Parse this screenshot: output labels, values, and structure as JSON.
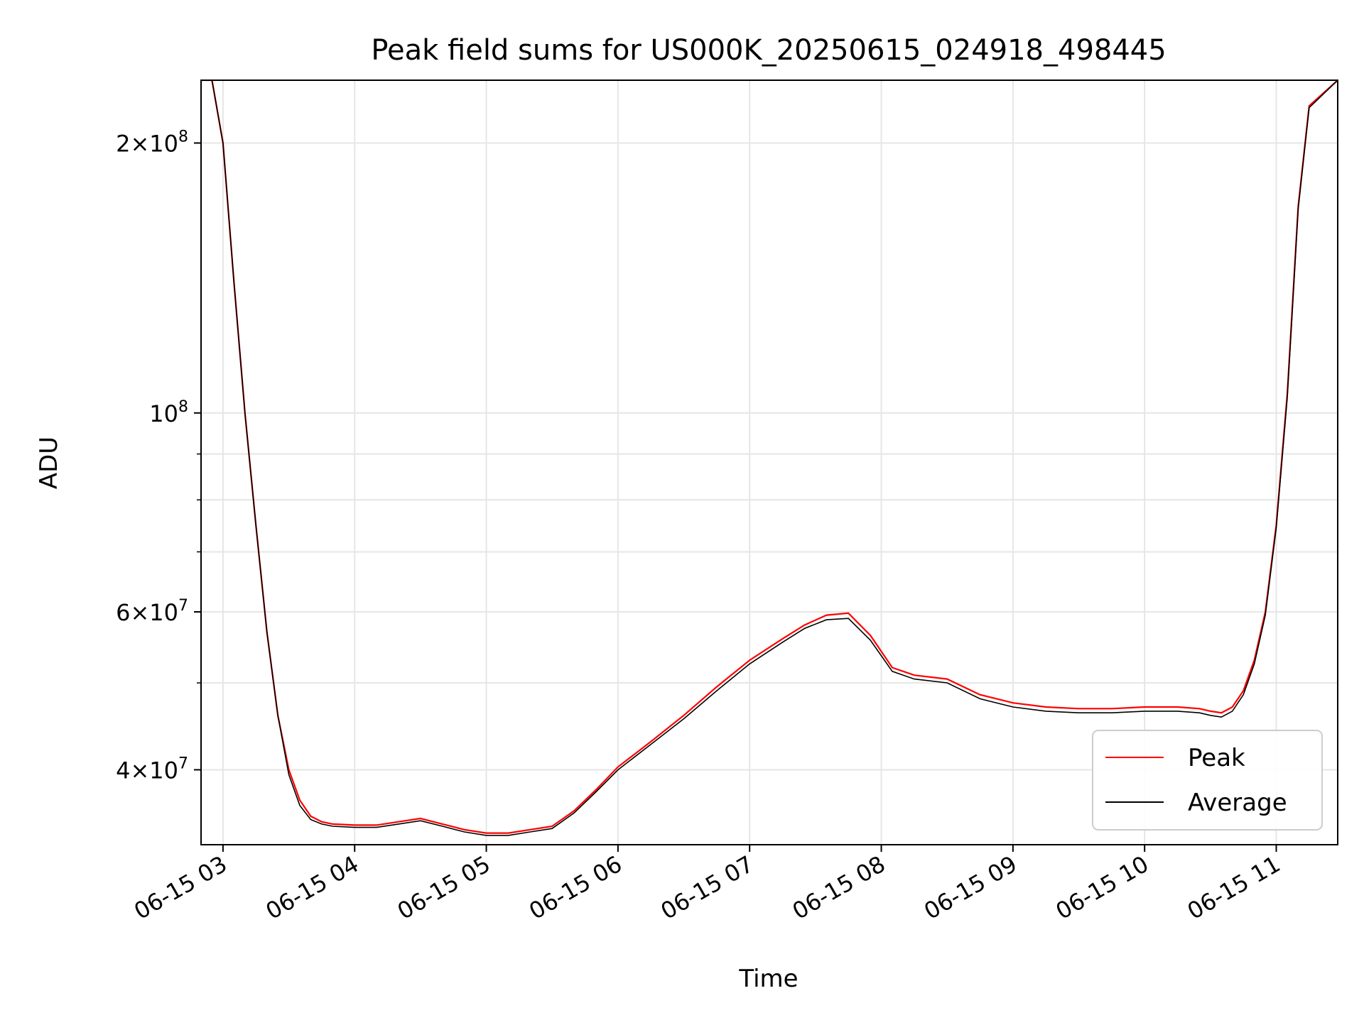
{
  "chart_data": {
    "type": "line",
    "title": "Peak field sums for US000K_20250615_024918_498445",
    "xlabel": "Time",
    "ylabel": "ADU",
    "yscale": "log",
    "ylim": [
      33000000,
      235000000
    ],
    "xlim": [
      "06-15 02:50",
      "06-15 11:28"
    ],
    "grid": true,
    "legend_position": "lower-right",
    "x_tick_labels": [
      "06-15 03",
      "06-15 04",
      "06-15 05",
      "06-15 06",
      "06-15 07",
      "06-15 08",
      "06-15 09",
      "06-15 10",
      "06-15 11"
    ],
    "y_ticks": [
      {
        "mantissa": "2",
        "exponent": "8",
        "value": 200000000
      },
      {
        "mantissa": "",
        "exponent": "8",
        "value": 100000000
      },
      {
        "mantissa": "6",
        "exponent": "7",
        "value": 60000000
      },
      {
        "mantissa": "4",
        "exponent": "7",
        "value": 40000000
      }
    ],
    "x": [
      "06-15 02:50",
      "06-15 02:55",
      "06-15 03:00",
      "06-15 03:05",
      "06-15 03:10",
      "06-15 03:15",
      "06-15 03:20",
      "06-15 03:25",
      "06-15 03:30",
      "06-15 03:35",
      "06-15 03:40",
      "06-15 03:45",
      "06-15 03:50",
      "06-15 04:00",
      "06-15 04:10",
      "06-15 04:20",
      "06-15 04:30",
      "06-15 04:40",
      "06-15 04:50",
      "06-15 05:00",
      "06-15 05:10",
      "06-15 05:20",
      "06-15 05:30",
      "06-15 05:40",
      "06-15 05:50",
      "06-15 06:00",
      "06-15 06:15",
      "06-15 06:30",
      "06-15 06:45",
      "06-15 07:00",
      "06-15 07:15",
      "06-15 07:25",
      "06-15 07:35",
      "06-15 07:45",
      "06-15 07:55",
      "06-15 08:05",
      "06-15 08:15",
      "06-15 08:30",
      "06-15 08:45",
      "06-15 09:00",
      "06-15 09:15",
      "06-15 09:30",
      "06-15 09:45",
      "06-15 10:00",
      "06-15 10:15",
      "06-15 10:25",
      "06-15 10:30",
      "06-15 10:35",
      "06-15 10:40",
      "06-15 10:45",
      "06-15 10:50",
      "06-15 10:55",
      "06-15 11:00",
      "06-15 11:05",
      "06-15 11:10",
      "06-15 11:15",
      "06-15 11:28"
    ],
    "series": [
      {
        "name": "Peak",
        "color": "#ff0000",
        "values": [
          235000000,
          235000000,
          200000000,
          140000000,
          100000000,
          75000000,
          57000000,
          46000000,
          40000000,
          37000000,
          35500000,
          35000000,
          34800000,
          34700000,
          34700000,
          35000000,
          35300000,
          34800000,
          34300000,
          34000000,
          34000000,
          34300000,
          34600000,
          36000000,
          38000000,
          40300000,
          43000000,
          46000000,
          49500000,
          53000000,
          56000000,
          58000000,
          59500000,
          59800000,
          56500000,
          52000000,
          51000000,
          50500000,
          48500000,
          47500000,
          47000000,
          46800000,
          46800000,
          47000000,
          47000000,
          46800000,
          46500000,
          46300000,
          47000000,
          49000000,
          53000000,
          60000000,
          75000000,
          105000000,
          170000000,
          220000000,
          235000000
        ]
      },
      {
        "name": "Average",
        "color": "#000000",
        "values": [
          235000000,
          235000000,
          200000000,
          140000000,
          100000000,
          75000000,
          57000000,
          46000000,
          39500000,
          36500000,
          35200000,
          34800000,
          34600000,
          34500000,
          34500000,
          34800000,
          35100000,
          34600000,
          34100000,
          33800000,
          33800000,
          34100000,
          34400000,
          35800000,
          37800000,
          40000000,
          42700000,
          45600000,
          49000000,
          52500000,
          55500000,
          57500000,
          58800000,
          59000000,
          55800000,
          51500000,
          50500000,
          50000000,
          48000000,
          47000000,
          46500000,
          46300000,
          46300000,
          46500000,
          46500000,
          46300000,
          46000000,
          45800000,
          46500000,
          48500000,
          52500000,
          59500000,
          74500000,
          104000000,
          169000000,
          219000000,
          235000000
        ]
      }
    ]
  }
}
